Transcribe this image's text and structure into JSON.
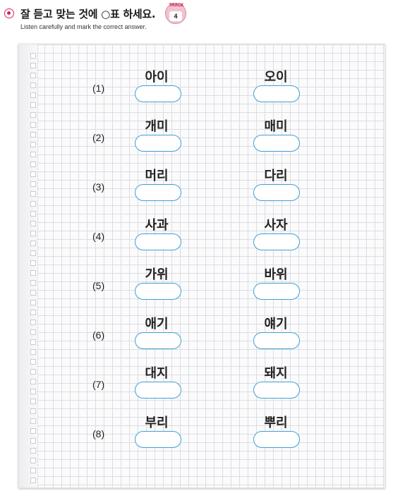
{
  "header": {
    "instruction_ko": "잘 듣고 맞는 것에 ○표 하세요.",
    "instruction_en": "Listen carefully and mark the correct answer.",
    "track_label": "TRACK",
    "track_number": "4"
  },
  "colors": {
    "accent": "#d1285a",
    "box_border": "#3f9fd6"
  },
  "items": [
    {
      "number": "(1)",
      "left": "아이",
      "right": "오이"
    },
    {
      "number": "(2)",
      "left": "개미",
      "right": "매미"
    },
    {
      "number": "(3)",
      "left": "머리",
      "right": "다리"
    },
    {
      "number": "(4)",
      "left": "사과",
      "right": "사자"
    },
    {
      "number": "(5)",
      "left": "가위",
      "right": "바위"
    },
    {
      "number": "(6)",
      "left": "애기",
      "right": "얘기"
    },
    {
      "number": "(7)",
      "left": "대지",
      "right": "돼지"
    },
    {
      "number": "(8)",
      "left": "부리",
      "right": "뿌리"
    }
  ]
}
